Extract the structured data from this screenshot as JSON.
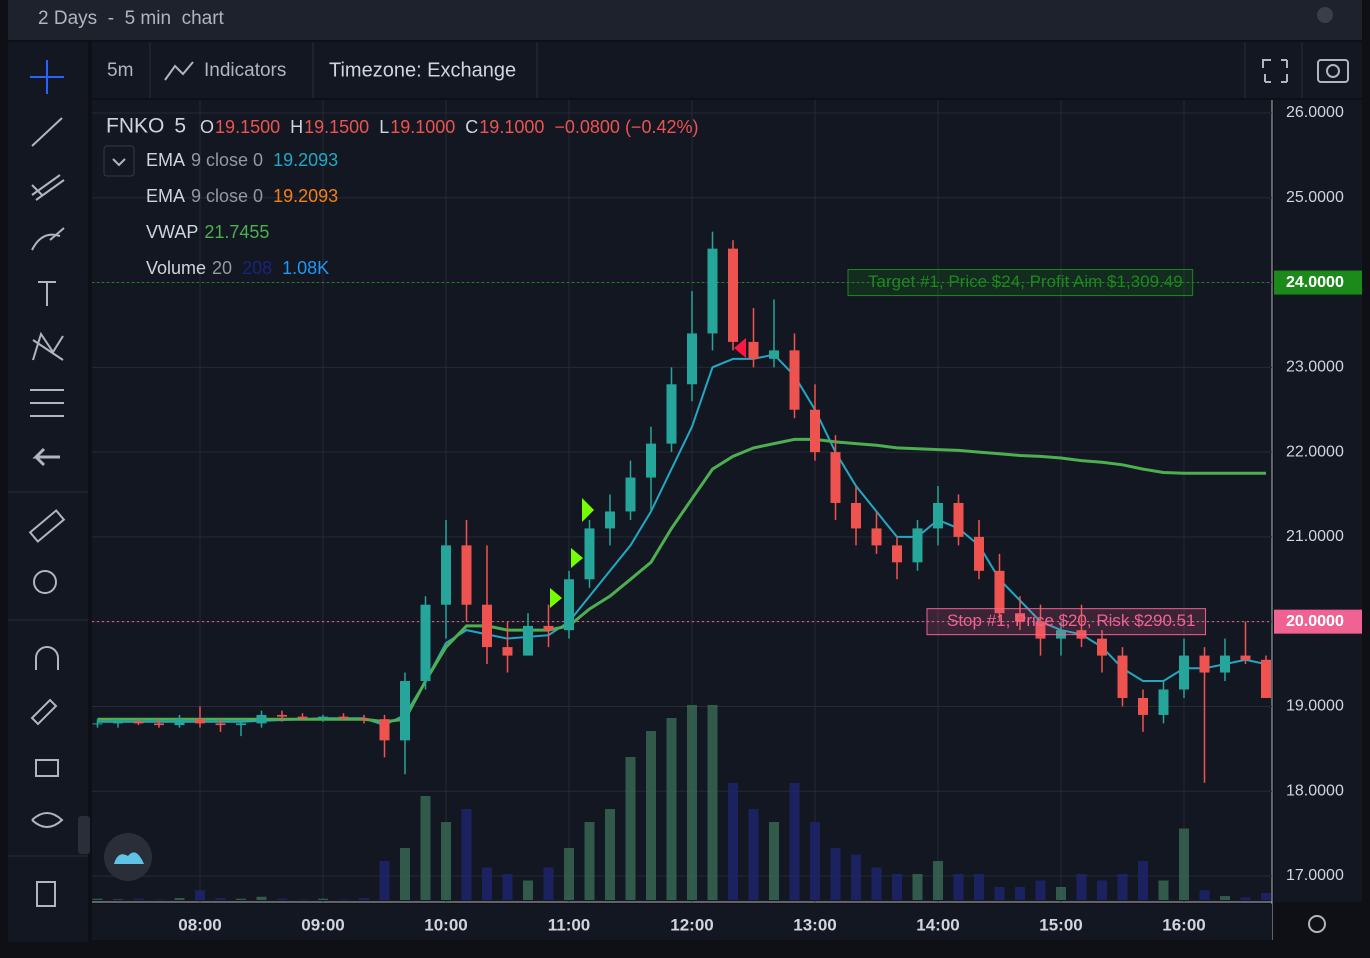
{
  "header": {
    "title": "2 Days  -  5 min  chart"
  },
  "toolbar": {
    "interval": "5m",
    "indicators": "Indicators",
    "timezone": "Timezone: Exchange"
  },
  "legend": {
    "symbol": "FNKO",
    "interval": "5",
    "ohlc": [
      {
        "key": "O",
        "value": "19.1500"
      },
      {
        "key": "H",
        "value": "19.1500"
      },
      {
        "key": "L",
        "value": "19.1000"
      },
      {
        "key": "C",
        "value": "19.1000"
      }
    ],
    "change": "−0.0800 (−0.42%)",
    "studies": [
      {
        "name": "EMA",
        "params": "9 close 0",
        "values": [
          "19.2093"
        ],
        "colors": [
          "#22a8c4"
        ]
      },
      {
        "name": "EMA",
        "params": "9 close 0",
        "values": [
          "19.2093"
        ],
        "colors": [
          "#f57f17"
        ]
      },
      {
        "name": "VWAP",
        "params": "",
        "values": [
          "21.7455"
        ],
        "colors": [
          "#4caf50"
        ]
      },
      {
        "name": "Volume",
        "params": "20",
        "values": [
          "208",
          "1.08K"
        ],
        "colors": [
          "#1a237e",
          "#2196f3"
        ]
      }
    ]
  },
  "chart_data": {
    "type": "candlestick",
    "x": [
      "07:10",
      "07:20",
      "07:30",
      "07:40",
      "07:50",
      "08:00",
      "08:10",
      "08:20",
      "08:30",
      "08:40",
      "08:50",
      "09:00",
      "09:10",
      "09:20",
      "09:30",
      "09:40",
      "09:50",
      "10:00",
      "10:10",
      "10:20",
      "10:30",
      "10:40",
      "10:50",
      "11:00",
      "11:10",
      "11:20",
      "11:30",
      "11:40",
      "11:50",
      "12:00",
      "12:10",
      "12:20",
      "12:30",
      "12:40",
      "12:50",
      "13:00",
      "13:10",
      "13:20",
      "13:30",
      "13:40",
      "13:50",
      "14:00",
      "14:10",
      "14:20",
      "14:30",
      "14:40",
      "14:50",
      "15:00",
      "15:10",
      "15:20",
      "15:30",
      "15:40",
      "15:50",
      "16:00",
      "16:10",
      "16:20",
      "16:30",
      "16:40"
    ],
    "ohlc": [
      [
        18.8,
        18.85,
        18.75,
        18.8
      ],
      [
        18.8,
        18.85,
        18.75,
        18.82
      ],
      [
        18.82,
        18.85,
        18.78,
        18.8
      ],
      [
        18.8,
        18.85,
        18.75,
        18.78
      ],
      [
        18.78,
        18.9,
        18.75,
        18.85
      ],
      [
        18.85,
        19.0,
        18.75,
        18.8
      ],
      [
        18.8,
        18.85,
        18.7,
        18.78
      ],
      [
        18.78,
        18.85,
        18.65,
        18.8
      ],
      [
        18.8,
        18.95,
        18.75,
        18.9
      ],
      [
        18.9,
        18.95,
        18.82,
        18.88
      ],
      [
        18.88,
        18.92,
        18.84,
        18.86
      ],
      [
        18.86,
        18.9,
        18.82,
        18.88
      ],
      [
        18.88,
        18.92,
        18.84,
        18.86
      ],
      [
        18.86,
        18.9,
        18.8,
        18.85
      ],
      [
        18.85,
        18.9,
        18.4,
        18.6
      ],
      [
        18.6,
        19.4,
        18.2,
        19.3
      ],
      [
        19.3,
        20.3,
        19.2,
        20.2
      ],
      [
        20.2,
        21.2,
        19.8,
        20.9
      ],
      [
        20.9,
        21.2,
        20.0,
        20.2
      ],
      [
        20.2,
        20.9,
        19.5,
        19.7
      ],
      [
        19.7,
        20.0,
        19.4,
        19.6
      ],
      [
        19.6,
        20.1,
        19.6,
        19.95
      ],
      [
        19.95,
        20.2,
        19.7,
        19.9
      ],
      [
        19.9,
        20.6,
        19.8,
        20.5
      ],
      [
        20.5,
        21.2,
        20.4,
        21.1
      ],
      [
        21.1,
        21.5,
        20.9,
        21.3
      ],
      [
        21.3,
        21.9,
        21.2,
        21.7
      ],
      [
        21.7,
        22.3,
        21.3,
        22.1
      ],
      [
        22.1,
        23.0,
        22.0,
        22.8
      ],
      [
        22.8,
        23.9,
        22.6,
        23.4
      ],
      [
        23.4,
        24.6,
        23.2,
        24.4
      ],
      [
        24.4,
        24.5,
        23.2,
        23.3
      ],
      [
        23.3,
        23.7,
        23.0,
        23.1
      ],
      [
        23.1,
        23.8,
        23.0,
        23.2
      ],
      [
        23.2,
        23.4,
        22.4,
        22.5
      ],
      [
        22.5,
        22.8,
        21.9,
        22.0
      ],
      [
        22.0,
        22.2,
        21.2,
        21.4
      ],
      [
        21.4,
        21.6,
        20.9,
        21.1
      ],
      [
        21.1,
        21.3,
        20.8,
        20.9
      ],
      [
        20.9,
        21.0,
        20.5,
        20.7
      ],
      [
        20.7,
        21.2,
        20.6,
        21.1
      ],
      [
        21.1,
        21.6,
        20.9,
        21.4
      ],
      [
        21.4,
        21.5,
        20.9,
        21.0
      ],
      [
        21.0,
        21.2,
        20.5,
        20.6
      ],
      [
        20.6,
        20.8,
        20.0,
        20.1
      ],
      [
        20.1,
        20.3,
        19.9,
        20.0
      ],
      [
        20.0,
        20.2,
        19.6,
        19.8
      ],
      [
        19.8,
        20.0,
        19.6,
        19.9
      ],
      [
        19.9,
        20.2,
        19.7,
        19.8
      ],
      [
        19.8,
        19.9,
        19.4,
        19.6
      ],
      [
        19.6,
        19.7,
        19.0,
        19.1
      ],
      [
        19.1,
        19.2,
        18.7,
        18.9
      ],
      [
        18.9,
        19.3,
        18.8,
        19.2
      ],
      [
        19.2,
        19.8,
        19.1,
        19.6
      ],
      [
        19.6,
        19.7,
        18.1,
        19.4
      ],
      [
        19.4,
        19.8,
        19.3,
        19.6
      ],
      [
        19.6,
        20.0,
        19.5,
        19.55
      ],
      [
        19.55,
        19.6,
        19.1,
        19.1
      ]
    ],
    "up_color": "#26a69a",
    "down_color": "#ef5350",
    "lines": [
      {
        "name": "EMA",
        "color": "#22a8c4",
        "width": 2,
        "values": [
          18.82,
          18.82,
          18.82,
          18.82,
          18.82,
          18.82,
          18.82,
          18.82,
          18.83,
          18.84,
          18.85,
          18.86,
          18.86,
          18.86,
          18.78,
          18.9,
          19.3,
          19.75,
          19.9,
          19.85,
          19.8,
          19.82,
          19.84,
          20.0,
          20.3,
          20.6,
          20.9,
          21.3,
          21.8,
          22.3,
          23.0,
          23.1,
          23.1,
          23.15,
          22.9,
          22.5,
          22.0,
          21.6,
          21.3,
          21.0,
          21.0,
          21.2,
          21.1,
          20.9,
          20.5,
          20.25,
          20.0,
          19.9,
          19.85,
          19.7,
          19.45,
          19.3,
          19.3,
          19.45,
          19.45,
          19.5,
          19.55,
          19.5
        ]
      },
      {
        "name": "VWAP",
        "color": "#4caf50",
        "width": 3,
        "values": [
          18.85,
          18.85,
          18.85,
          18.85,
          18.85,
          18.85,
          18.85,
          18.85,
          18.85,
          18.85,
          18.85,
          18.85,
          18.85,
          18.85,
          18.82,
          18.85,
          19.3,
          19.7,
          19.95,
          19.95,
          19.9,
          19.9,
          19.9,
          19.95,
          20.15,
          20.3,
          20.5,
          20.7,
          21.1,
          21.45,
          21.8,
          21.95,
          22.05,
          22.1,
          22.15,
          22.15,
          22.12,
          22.1,
          22.08,
          22.05,
          22.04,
          22.03,
          22.02,
          22.0,
          21.98,
          21.96,
          21.95,
          21.93,
          21.9,
          21.88,
          21.85,
          21.8,
          21.76,
          21.75,
          21.75,
          21.75,
          21.75,
          21.75
        ]
      }
    ],
    "volume": {
      "up_color": "#3b6b55",
      "down_color": "#1f2670",
      "vlim": [
        0,
        30
      ],
      "values": [
        0.2,
        0.1,
        0.2,
        0.1,
        0.3,
        1.5,
        0.3,
        0.2,
        0.5,
        0.2,
        0.1,
        0.2,
        0.1,
        0.3,
        6,
        8,
        16,
        12,
        14,
        5,
        4,
        3,
        5,
        8,
        12,
        14,
        22,
        26,
        28,
        30,
        30,
        18,
        14,
        12,
        18,
        12,
        8,
        7,
        5,
        4,
        4,
        6,
        4,
        4,
        2,
        2,
        3,
        2,
        4,
        3,
        4,
        6,
        3,
        11,
        1.5,
        0.6,
        0.4,
        1.08
      ]
    },
    "ylim": [
      16.7,
      26.15
    ],
    "yticks": [
      {
        "value": 17,
        "label": "17.0000"
      },
      {
        "value": 18,
        "label": "18.0000"
      },
      {
        "value": 19,
        "label": "19.0000"
      },
      {
        "value": 20,
        "label": "20.0000"
      },
      {
        "value": 21,
        "label": "21.0000"
      },
      {
        "value": 22,
        "label": "22.0000"
      },
      {
        "value": 23,
        "label": "23.0000"
      },
      {
        "value": 24,
        "label": "24.0000"
      },
      {
        "value": 25,
        "label": "25.0000"
      },
      {
        "value": 26,
        "label": "26.0000"
      }
    ],
    "xticks": [
      "08:00",
      "09:00",
      "10:00",
      "11:00",
      "12:00",
      "13:00",
      "14:00",
      "15:00",
      "16:00"
    ],
    "grid": true,
    "price_lines": [
      {
        "value": 24,
        "label": "24.0000",
        "color": "#1b8a1b",
        "text": "Target #1, Price $24, Profit Aim $1,309.49"
      },
      {
        "value": 20,
        "label": "20.0000",
        "color": "#f06292",
        "text": "Stop #1, Price $20, Risk $290.51"
      }
    ]
  }
}
